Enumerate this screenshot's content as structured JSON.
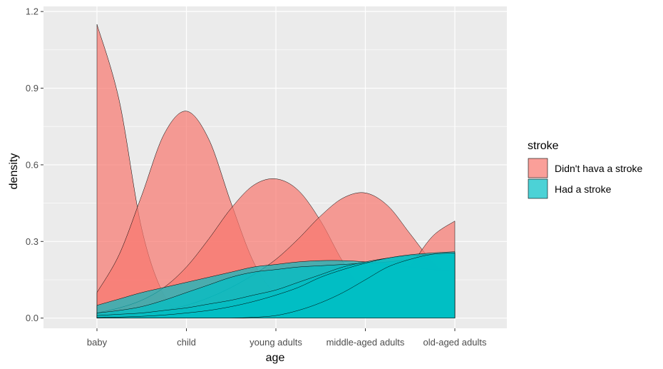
{
  "chart_data": {
    "type": "area",
    "xlabel": "age",
    "ylabel": "density",
    "categories": [
      "baby",
      "child",
      "young adults",
      "middle-aged adults",
      "old-aged adults"
    ],
    "ylim": [
      -0.04,
      1.22
    ],
    "yticks": [
      0.0,
      0.3,
      0.6,
      0.9,
      1.2
    ],
    "yticklabels": [
      "0.0",
      "0.3",
      "0.6",
      "0.9",
      "1.2"
    ],
    "grid": true,
    "legend": {
      "title": "stroke",
      "placement": "right",
      "entries": [
        "Didn't hava a stroke",
        "Had a stroke"
      ]
    },
    "colors": {
      "Didn't hava a stroke": "#F8766D",
      "Had a stroke": "#00BFC4"
    },
    "series": [
      {
        "group": "Didn't hava a stroke",
        "level": "baby",
        "x": [
          1,
          1.25,
          1.5,
          1.75,
          2,
          2.25,
          2.5,
          2.75,
          3,
          3.25,
          3.5,
          3.75,
          4,
          4.25,
          4.5,
          4.75,
          5
        ],
        "values": [
          1.15,
          0.85,
          0.35,
          0.09,
          0.01,
          0.002,
          0,
          0,
          0,
          0,
          0,
          0,
          0,
          0,
          0,
          0,
          0
        ]
      },
      {
        "group": "Didn't hava a stroke",
        "level": "child",
        "x": [
          1,
          1.25,
          1.5,
          1.75,
          2,
          2.25,
          2.5,
          2.75,
          3,
          3.25,
          3.5,
          3.75,
          4,
          4.25,
          4.5,
          4.75,
          5
        ],
        "values": [
          0.1,
          0.25,
          0.48,
          0.72,
          0.81,
          0.7,
          0.45,
          0.22,
          0.09,
          0.03,
          0.01,
          0,
          0,
          0,
          0,
          0,
          0
        ]
      },
      {
        "group": "Didn't hava a stroke",
        "level": "young adults",
        "x": [
          1,
          1.25,
          1.5,
          1.75,
          2,
          2.25,
          2.5,
          2.75,
          3,
          3.25,
          3.5,
          3.75,
          4,
          4.25,
          4.5,
          4.75,
          5
        ],
        "values": [
          0.02,
          0.04,
          0.07,
          0.12,
          0.2,
          0.31,
          0.43,
          0.52,
          0.545,
          0.5,
          0.38,
          0.22,
          0.1,
          0.04,
          0.015,
          0.005,
          0
        ]
      },
      {
        "group": "Didn't hava a stroke",
        "level": "middle-aged adults",
        "x": [
          1,
          1.25,
          1.5,
          1.75,
          2,
          2.25,
          2.5,
          2.75,
          3,
          3.25,
          3.5,
          3.75,
          4,
          4.25,
          4.5,
          4.75,
          5
        ],
        "values": [
          0.01,
          0.01,
          0.02,
          0.03,
          0.05,
          0.08,
          0.12,
          0.17,
          0.23,
          0.31,
          0.4,
          0.47,
          0.49,
          0.44,
          0.33,
          0.22,
          0.15
        ]
      },
      {
        "group": "Didn't hava a stroke",
        "level": "old-aged adults",
        "x": [
          1,
          1.25,
          1.5,
          1.75,
          2,
          2.25,
          2.5,
          2.75,
          3,
          3.25,
          3.5,
          3.75,
          4,
          4.25,
          4.5,
          4.75,
          5
        ],
        "values": [
          0,
          0,
          0,
          0,
          0,
          0,
          0,
          0,
          0,
          0,
          0,
          0.005,
          0.02,
          0.08,
          0.2,
          0.32,
          0.38
        ]
      },
      {
        "group": "Had a stroke",
        "level": "baby",
        "x": [
          1,
          1.25,
          1.5,
          1.75,
          2,
          2.25,
          2.5,
          2.75,
          3,
          3.25,
          3.5,
          3.75,
          4,
          4.25,
          4.5,
          4.75,
          5
        ],
        "values": [
          0.05,
          0.075,
          0.1,
          0.12,
          0.14,
          0.16,
          0.18,
          0.2,
          0.21,
          0.22,
          0.225,
          0.225,
          0.22,
          0.21,
          0.2,
          0.19,
          0.185
        ]
      },
      {
        "group": "Had a stroke",
        "level": "child",
        "x": [
          1,
          1.25,
          1.5,
          1.75,
          2,
          2.25,
          2.5,
          2.75,
          3,
          3.25,
          3.5,
          3.75,
          4,
          4.25,
          4.5,
          4.75,
          5
        ],
        "values": [
          0.02,
          0.03,
          0.045,
          0.07,
          0.1,
          0.13,
          0.16,
          0.18,
          0.19,
          0.2,
          0.205,
          0.21,
          0.215,
          0.22,
          0.23,
          0.24,
          0.25
        ]
      },
      {
        "group": "Had a stroke",
        "level": "young adults",
        "x": [
          1,
          1.25,
          1.5,
          1.75,
          2,
          2.25,
          2.5,
          2.75,
          3,
          3.25,
          3.5,
          3.75,
          4,
          4.25,
          4.5,
          4.75,
          5
        ],
        "values": [
          0.01,
          0.015,
          0.02,
          0.03,
          0.04,
          0.055,
          0.07,
          0.09,
          0.11,
          0.14,
          0.17,
          0.2,
          0.22,
          0.235,
          0.245,
          0.25,
          0.255
        ]
      },
      {
        "group": "Had a stroke",
        "level": "middle-aged adults",
        "x": [
          1,
          1.25,
          1.5,
          1.75,
          2,
          2.25,
          2.5,
          2.75,
          3,
          3.25,
          3.5,
          3.75,
          4,
          4.25,
          4.5,
          4.75,
          5
        ],
        "values": [
          0.002,
          0.004,
          0.007,
          0.012,
          0.02,
          0.03,
          0.045,
          0.065,
          0.09,
          0.12,
          0.16,
          0.19,
          0.215,
          0.235,
          0.248,
          0.255,
          0.26
        ]
      },
      {
        "group": "Had a stroke",
        "level": "old-aged adults",
        "x": [
          1,
          1.25,
          1.5,
          1.75,
          2,
          2.25,
          2.5,
          2.75,
          3,
          3.25,
          3.5,
          3.75,
          4,
          4.25,
          4.5,
          4.75,
          5
        ],
        "values": [
          0,
          0,
          0,
          0,
          0,
          0,
          0,
          0.003,
          0.01,
          0.03,
          0.06,
          0.1,
          0.15,
          0.2,
          0.23,
          0.25,
          0.255
        ]
      }
    ]
  }
}
